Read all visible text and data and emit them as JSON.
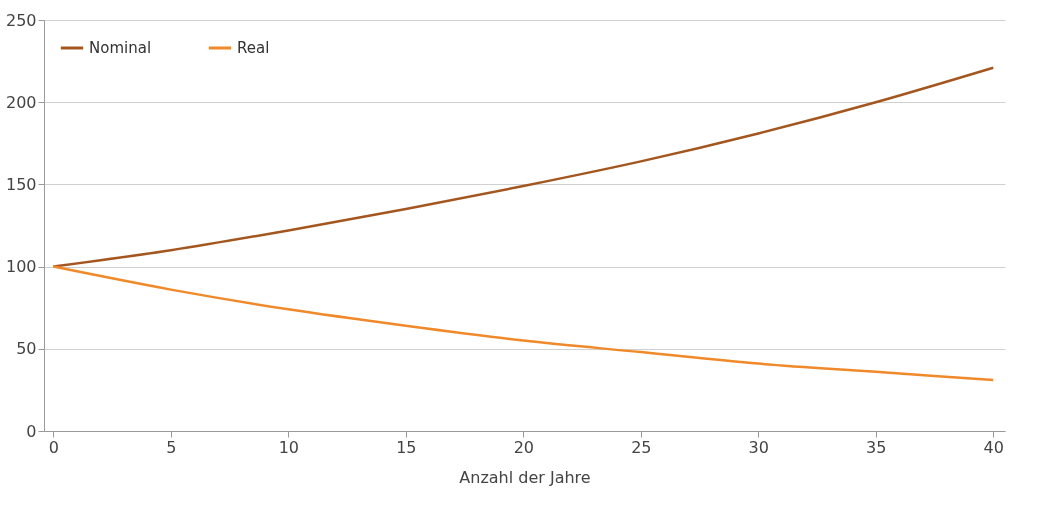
{
  "chart_data": {
    "type": "line",
    "xlabel": "Anzahl der Jahre",
    "x": [
      0,
      5,
      10,
      15,
      20,
      25,
      30,
      35,
      40
    ],
    "series": [
      {
        "name": "Nominal",
        "color": "#a4561f",
        "values": [
          100,
          110,
          122,
          135,
          149,
          164,
          181,
          200,
          221
        ]
      },
      {
        "name": "Real",
        "color": "#f0892a",
        "values": [
          100,
          86,
          74,
          64,
          55,
          48,
          41,
          36,
          31
        ]
      }
    ],
    "xlim": [
      -0.4,
      40.5
    ],
    "xticks": [
      0,
      5,
      10,
      15,
      20,
      25,
      30,
      35,
      40
    ],
    "ylim": [
      0,
      250
    ],
    "yticks": [
      0,
      50,
      100,
      150,
      200,
      250
    ],
    "grid": "y",
    "legend": "top left",
    "marker": "none",
    "line_style": "solid"
  }
}
